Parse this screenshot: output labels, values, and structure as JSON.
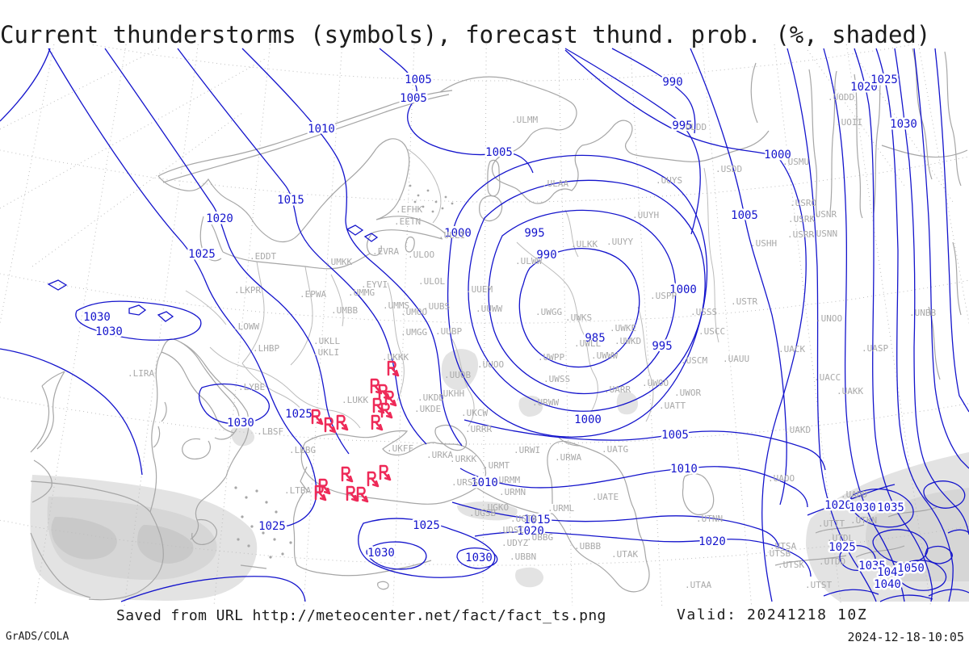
{
  "title": "Current thunderstorms (symbols), forecast thund. prob. (%, shaded)",
  "footer": {
    "saved_from": "Saved from URL http://meteocenter.net/fact/fact_ts.png",
    "valid": "Valid: 20241218 10Z",
    "generator": "GrADS/COLA",
    "timestamp": "2024-12-18-10:05"
  },
  "map": {
    "colors": {
      "isobar": "#1414cc",
      "isobar_label": "#1414cc",
      "coast": "#a6a6a6",
      "border": "#bcbcbc",
      "grid": "#bdbdbd",
      "station": "#a9a9a9",
      "storm_symbol": "#ee2a58",
      "shade_light": "#e3e3e3",
      "shade_mid": "#d6d6d6",
      "shade_dark": "#c9c9c9"
    },
    "units": "hPa",
    "shading_meaning": "forecast thunderstorm probability (%)",
    "symbol_meaning": "current thunderstorm"
  },
  "isobar_labels": [
    [
      1005,
      518,
      98
    ],
    [
      1005,
      512,
      121
    ],
    [
      1010,
      398,
      159
    ],
    [
      1005,
      618,
      188
    ],
    [
      990,
      833,
      101
    ],
    [
      995,
      845,
      155
    ],
    [
      1000,
      963,
      191
    ],
    [
      1005,
      922,
      266
    ],
    [
      1020,
      1070,
      107
    ],
    [
      1025,
      1095,
      98
    ],
    [
      1030,
      1119,
      153
    ],
    [
      1015,
      360,
      247
    ],
    [
      1020,
      272,
      270
    ],
    [
      1025,
      250,
      314
    ],
    [
      1000,
      567,
      288
    ],
    [
      995,
      662,
      288
    ],
    [
      990,
      677,
      315
    ],
    [
      985,
      737,
      418
    ],
    [
      995,
      820,
      428
    ],
    [
      1000,
      846,
      358
    ],
    [
      1030,
      120,
      392
    ],
    [
      1030,
      135,
      410
    ],
    [
      1025,
      370,
      512
    ],
    [
      1030,
      298,
      523
    ],
    [
      1000,
      728,
      519
    ],
    [
      1005,
      836,
      538
    ],
    [
      1010,
      847,
      580
    ],
    [
      1010,
      600,
      597
    ],
    [
      1015,
      665,
      643
    ],
    [
      1020,
      657,
      657
    ],
    [
      1020,
      882,
      670
    ],
    [
      1025,
      528,
      650
    ],
    [
      1030,
      472,
      684
    ],
    [
      1030,
      593,
      690
    ],
    [
      1025,
      337,
      651
    ],
    [
      1020,
      1038,
      625
    ],
    [
      1030,
      1068,
      628
    ],
    [
      1035,
      1103,
      628
    ],
    [
      1025,
      1043,
      677
    ],
    [
      1035,
      1080,
      700
    ],
    [
      1045,
      1103,
      708
    ],
    [
      1050,
      1128,
      703
    ],
    [
      1040,
      1099,
      723
    ]
  ],
  "stations": [
    [
      ".EFHK",
      490,
      263
    ],
    [
      ".EETN",
      488,
      278
    ],
    [
      ".ULLI",
      543,
      295
    ],
    [
      ".ULOO",
      505,
      319
    ],
    [
      ".EVRA",
      461,
      315
    ],
    [
      ".UMKK",
      403,
      328
    ],
    [
      ".ULAA",
      671,
      231
    ],
    [
      ".ULMM",
      633,
      152
    ],
    [
      ".ULDD",
      842,
      161
    ],
    [
      ".USDD",
      886,
      213
    ],
    [
      ".USMU",
      969,
      204
    ],
    [
      ".UODD",
      1025,
      124
    ],
    [
      ".UOII",
      1035,
      155
    ],
    [
      ".UUYS",
      812,
      227
    ],
    [
      ".UUYH",
      783,
      270
    ],
    [
      ".ULOL",
      518,
      352
    ],
    [
      ".EYVI",
      447,
      356
    ],
    [
      ".UMMG",
      431,
      366
    ],
    [
      ".UMBB",
      410,
      388
    ],
    [
      ".UMMS",
      474,
      382
    ],
    [
      ".UMOO",
      496,
      390
    ],
    [
      ".UUBS",
      524,
      383
    ],
    [
      ".UUEM",
      577,
      362
    ],
    [
      ".UUWW",
      589,
      386
    ],
    [
      ".UMGG",
      496,
      415
    ],
    [
      ".UUBP",
      539,
      414
    ],
    [
      ".EPWA",
      371,
      368
    ],
    [
      ".EDDT",
      309,
      321
    ],
    [
      ".UKLL",
      388,
      426
    ],
    [
      ".UKLI",
      387,
      440
    ],
    [
      ".UKKK",
      473,
      446
    ],
    [
      ".LUKK",
      423,
      499
    ],
    [
      ".UUOB",
      550,
      468
    ],
    [
      ".UUOO",
      591,
      455
    ],
    [
      ".ULKK",
      707,
      306
    ],
    [
      ".UUYY",
      751,
      303
    ],
    [
      ".ULWW",
      638,
      327
    ],
    [
      ".USHH",
      929,
      305
    ],
    [
      ".USRO",
      978,
      255
    ],
    [
      ".USRK",
      976,
      275
    ],
    [
      ".USNR",
      1003,
      269
    ],
    [
      ".USRR",
      975,
      294
    ],
    [
      ".USNN",
      1004,
      293
    ],
    [
      ".USTR",
      905,
      377
    ],
    [
      ".USSS",
      855,
      390
    ],
    [
      ".USCC",
      865,
      414
    ],
    [
      ".USPP",
      805,
      370
    ],
    [
      ".UWGG",
      663,
      390
    ],
    [
      ".UWKS",
      700,
      397
    ],
    [
      ".UWKE",
      755,
      410
    ],
    [
      ".UWKD",
      761,
      426
    ],
    [
      ".UWLL",
      711,
      429
    ],
    [
      ".UWWW",
      732,
      444
    ],
    [
      ".UWPP",
      666,
      446
    ],
    [
      ".UWSS",
      673,
      473
    ],
    [
      ".UARR",
      748,
      486
    ],
    [
      ".UWOO",
      795,
      478
    ],
    [
      ".UWOR",
      835,
      490
    ],
    [
      ".USCM",
      843,
      450
    ],
    [
      ".UAUU",
      895,
      448
    ],
    [
      ".UATT",
      816,
      506
    ],
    [
      ".UKHH",
      542,
      491
    ],
    [
      ".UKDD",
      517,
      496
    ],
    [
      ".UKDE",
      513,
      510
    ],
    [
      ".UKFF",
      479,
      559
    ],
    [
      ".URKA",
      528,
      567
    ],
    [
      ".UKCW",
      571,
      515
    ],
    [
      ".URRR",
      576,
      535
    ],
    [
      ".URWW",
      659,
      502
    ],
    [
      ".URWI",
      636,
      561
    ],
    [
      ".URWA",
      687,
      570
    ],
    [
      ".UATG",
      745,
      560
    ],
    [
      ".URMT",
      598,
      580
    ],
    [
      ".URKK",
      557,
      572
    ],
    [
      ".URMM",
      611,
      598
    ],
    [
      ".URMN",
      618,
      613
    ],
    [
      ".URSS",
      559,
      601
    ],
    [
      ".UGKO",
      597,
      632
    ],
    [
      ".UGSB",
      581,
      639
    ],
    [
      ".UGTB",
      632,
      646
    ],
    [
      ".UDSC",
      616,
      660
    ],
    [
      ".UDYZ",
      621,
      676
    ],
    [
      ".UBBN",
      631,
      693
    ],
    [
      ".UBBG",
      652,
      669
    ],
    [
      ".UBBB",
      711,
      680
    ],
    [
      ".UTAK",
      757,
      690
    ],
    [
      ".UTAA",
      848,
      728
    ],
    [
      ".UTNN",
      862,
      646
    ],
    [
      ".UATE",
      733,
      619
    ],
    [
      ".URML",
      678,
      633
    ],
    [
      ".UASP",
      1067,
      435
    ],
    [
      ".UACK",
      964,
      436
    ],
    [
      ".UACC",
      1008,
      471
    ],
    [
      ".UAKK",
      1036,
      488
    ],
    [
      ".UAKD",
      971,
      536
    ],
    [
      ".UNBB",
      1126,
      391
    ],
    [
      ".UNOO",
      1010,
      398
    ],
    [
      ".UAOO",
      951,
      596
    ],
    [
      ".UADD",
      1041,
      616
    ],
    [
      ".UTTT",
      1013,
      652
    ],
    [
      ".UTDL",
      1024,
      670
    ],
    [
      ".UTSA",
      953,
      680
    ],
    [
      ".UTSB",
      946,
      689
    ],
    [
      ".UTSK",
      963,
      703
    ],
    [
      ".UTST",
      997,
      728
    ],
    [
      ".UTDD",
      1014,
      699
    ],
    [
      ".UTKN",
      1053,
      648
    ],
    [
      ".LKPR",
      290,
      363
    ],
    [
      ".LOWW",
      288,
      408
    ],
    [
      ".LHBP",
      313,
      435
    ],
    [
      ".LIRA",
      158,
      466
    ],
    [
      ".LYBE",
      295,
      483
    ],
    [
      ".LBSF",
      318,
      538
    ],
    [
      ".LBBG",
      358,
      561
    ],
    [
      ".LTBA",
      352,
      611
    ]
  ],
  "storm_symbols": [
    [
      487,
      457
    ],
    [
      466,
      479
    ],
    [
      476,
      486
    ],
    [
      484,
      494
    ],
    [
      469,
      503
    ],
    [
      479,
      509
    ],
    [
      467,
      524
    ],
    [
      393,
      517
    ],
    [
      409,
      527
    ],
    [
      424,
      524
    ],
    [
      430,
      588
    ],
    [
      462,
      594
    ],
    [
      477,
      586
    ],
    [
      402,
      603
    ],
    [
      397,
      611
    ],
    [
      436,
      612
    ],
    [
      449,
      613
    ]
  ]
}
